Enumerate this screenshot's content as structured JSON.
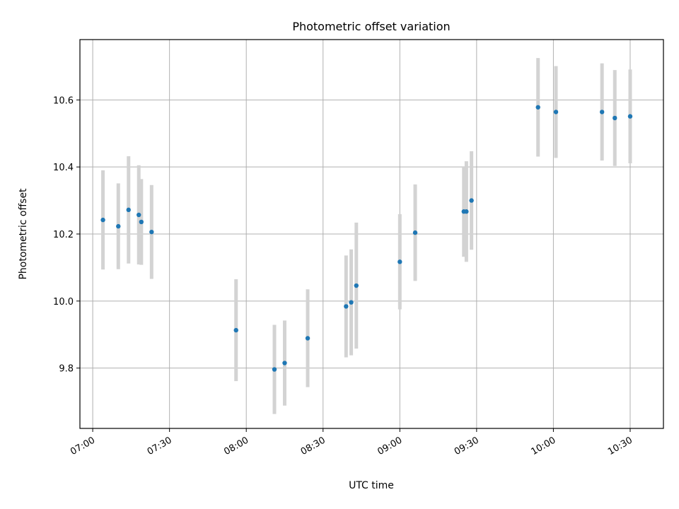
{
  "chart_data": {
    "type": "scatter",
    "title": "Photometric offset variation",
    "xlabel": "UTC time",
    "ylabel": "Photometric offset",
    "x_ticks": [
      "07:00",
      "07:30",
      "08:00",
      "08:30",
      "09:00",
      "09:30",
      "10:00",
      "10:30"
    ],
    "y_ticks": [
      "9.8",
      "10.0",
      "10.2",
      "10.4",
      "10.6"
    ],
    "xlim": [
      "06:55",
      "10:43"
    ],
    "ylim": [
      9.62,
      10.78
    ],
    "grid": true,
    "point_color": "#1f77b4",
    "errorbar_color": "#d3d3d3",
    "points": [
      {
        "x": "07:04",
        "y": 10.242,
        "err": 0.148
      },
      {
        "x": "07:10",
        "y": 10.223,
        "err": 0.128
      },
      {
        "x": "07:14",
        "y": 10.272,
        "err": 0.16
      },
      {
        "x": "07:18",
        "y": 10.257,
        "err": 0.148
      },
      {
        "x": "07:19",
        "y": 10.236,
        "err": 0.128
      },
      {
        "x": "07:23",
        "y": 10.206,
        "err": 0.14
      },
      {
        "x": "07:56",
        "y": 9.913,
        "err": 0.152
      },
      {
        "x": "08:11",
        "y": 9.796,
        "err": 0.133
      },
      {
        "x": "08:15",
        "y": 9.815,
        "err": 0.127
      },
      {
        "x": "08:24",
        "y": 9.889,
        "err": 0.146
      },
      {
        "x": "08:39",
        "y": 9.984,
        "err": 0.152
      },
      {
        "x": "08:41",
        "y": 9.996,
        "err": 0.158
      },
      {
        "x": "08:43",
        "y": 10.046,
        "err": 0.188
      },
      {
        "x": "09:00",
        "y": 10.117,
        "err": 0.142
      },
      {
        "x": "09:06",
        "y": 10.204,
        "err": 0.144
      },
      {
        "x": "09:25",
        "y": 10.267,
        "err": 0.135
      },
      {
        "x": "09:26",
        "y": 10.267,
        "err": 0.15
      },
      {
        "x": "09:28",
        "y": 10.3,
        "err": 0.147
      },
      {
        "x": "09:54",
        "y": 10.578,
        "err": 0.147
      },
      {
        "x": "10:01",
        "y": 10.564,
        "err": 0.137
      },
      {
        "x": "10:19",
        "y": 10.564,
        "err": 0.145
      },
      {
        "x": "10:24",
        "y": 10.546,
        "err": 0.143
      },
      {
        "x": "10:30",
        "y": 10.551,
        "err": 0.14
      }
    ]
  }
}
